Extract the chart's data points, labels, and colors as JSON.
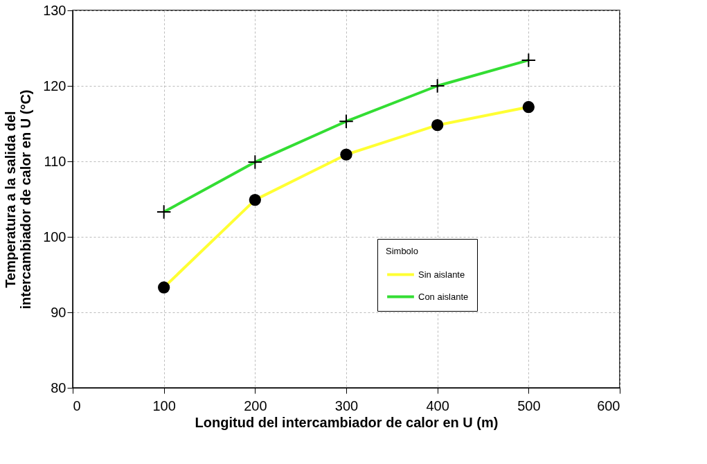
{
  "chart_data": {
    "type": "line",
    "xlabel": "Longitud del intercambiador de calor en U (m)",
    "ylabel": "Temperatura a la salida del\nintercambiador de calor en U (°C)",
    "legend_title": "Simbolo",
    "x": [
      100,
      200,
      300,
      400,
      500
    ],
    "series": [
      {
        "name": "Sin aislante",
        "color": "#ffff33",
        "marker": "circle",
        "values": [
          93.3,
          104.9,
          110.9,
          114.8,
          117.2
        ]
      },
      {
        "name": "Con aislante",
        "color": "#33dd33",
        "marker": "cross",
        "values": [
          103.3,
          109.9,
          115.3,
          120.0,
          123.4
        ]
      }
    ],
    "xlim": [
      0,
      600
    ],
    "xticks": [
      0,
      100,
      200,
      300,
      400,
      500,
      600
    ],
    "ylim": [
      80,
      130
    ],
    "yticks": [
      80,
      90,
      100,
      110,
      120,
      130
    ],
    "grid": true,
    "legend": "bottom right",
    "line_style": "solid"
  }
}
